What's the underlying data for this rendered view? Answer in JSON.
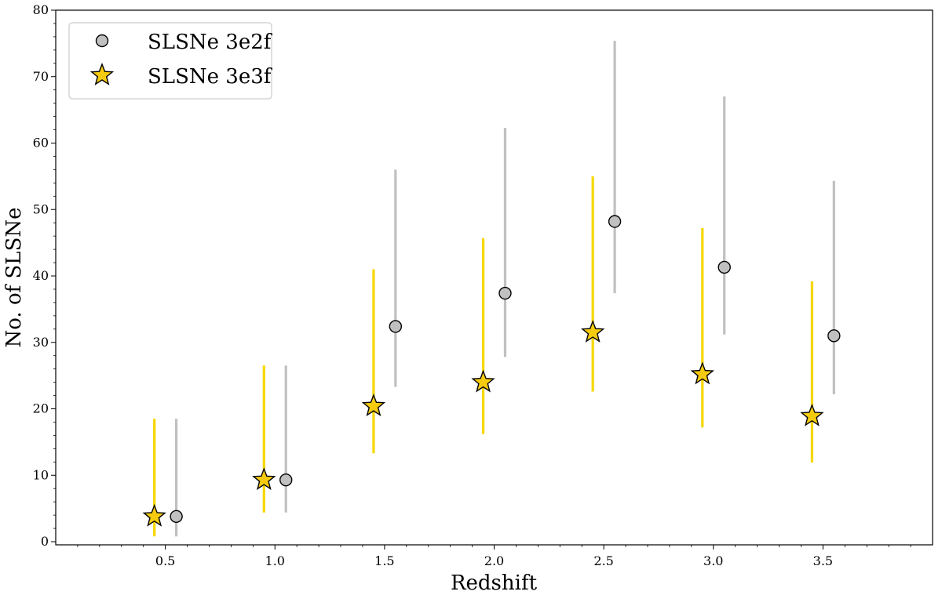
{
  "chart_data": {
    "type": "scatter",
    "xlabel": "Redshift",
    "ylabel": "No. of SLSNe",
    "xlim": [
      0.0,
      4.0
    ],
    "ylim": [
      0,
      80
    ],
    "x_ticks": [
      0.5,
      1.0,
      1.5,
      2.0,
      2.5,
      3.0,
      3.5
    ],
    "y_ticks": [
      0,
      10,
      20,
      30,
      40,
      50,
      60,
      70,
      80
    ],
    "grid": false,
    "legend_position": "top-left",
    "series": [
      {
        "name": "SLSNe 3e2f",
        "marker": "circle",
        "color": "#c0c0c0",
        "error_color": "#c0c0c0",
        "x": [
          0.55,
          1.05,
          1.55,
          2.05,
          2.55,
          3.05,
          3.55
        ],
        "y": [
          3.8,
          9.3,
          32.4,
          37.4,
          48.2,
          41.3,
          31.0
        ],
        "y_low": [
          0.8,
          4.4,
          23.3,
          27.8,
          37.4,
          31.2,
          22.2
        ],
        "y_high": [
          18.5,
          26.5,
          56.0,
          62.3,
          75.4,
          67.0,
          54.3
        ]
      },
      {
        "name": "SLSNe 3e3f",
        "marker": "star",
        "color": "#f5cb0f",
        "error_color": "#f7d700",
        "x": [
          0.45,
          0.95,
          1.45,
          1.95,
          2.45,
          2.95,
          3.45
        ],
        "y": [
          3.8,
          9.3,
          20.4,
          24.0,
          31.5,
          25.2,
          18.9
        ],
        "y_low": [
          0.8,
          4.4,
          13.3,
          16.2,
          22.6,
          17.2,
          11.9
        ],
        "y_high": [
          18.5,
          26.5,
          41.0,
          45.7,
          55.0,
          47.2,
          39.2
        ]
      }
    ]
  }
}
